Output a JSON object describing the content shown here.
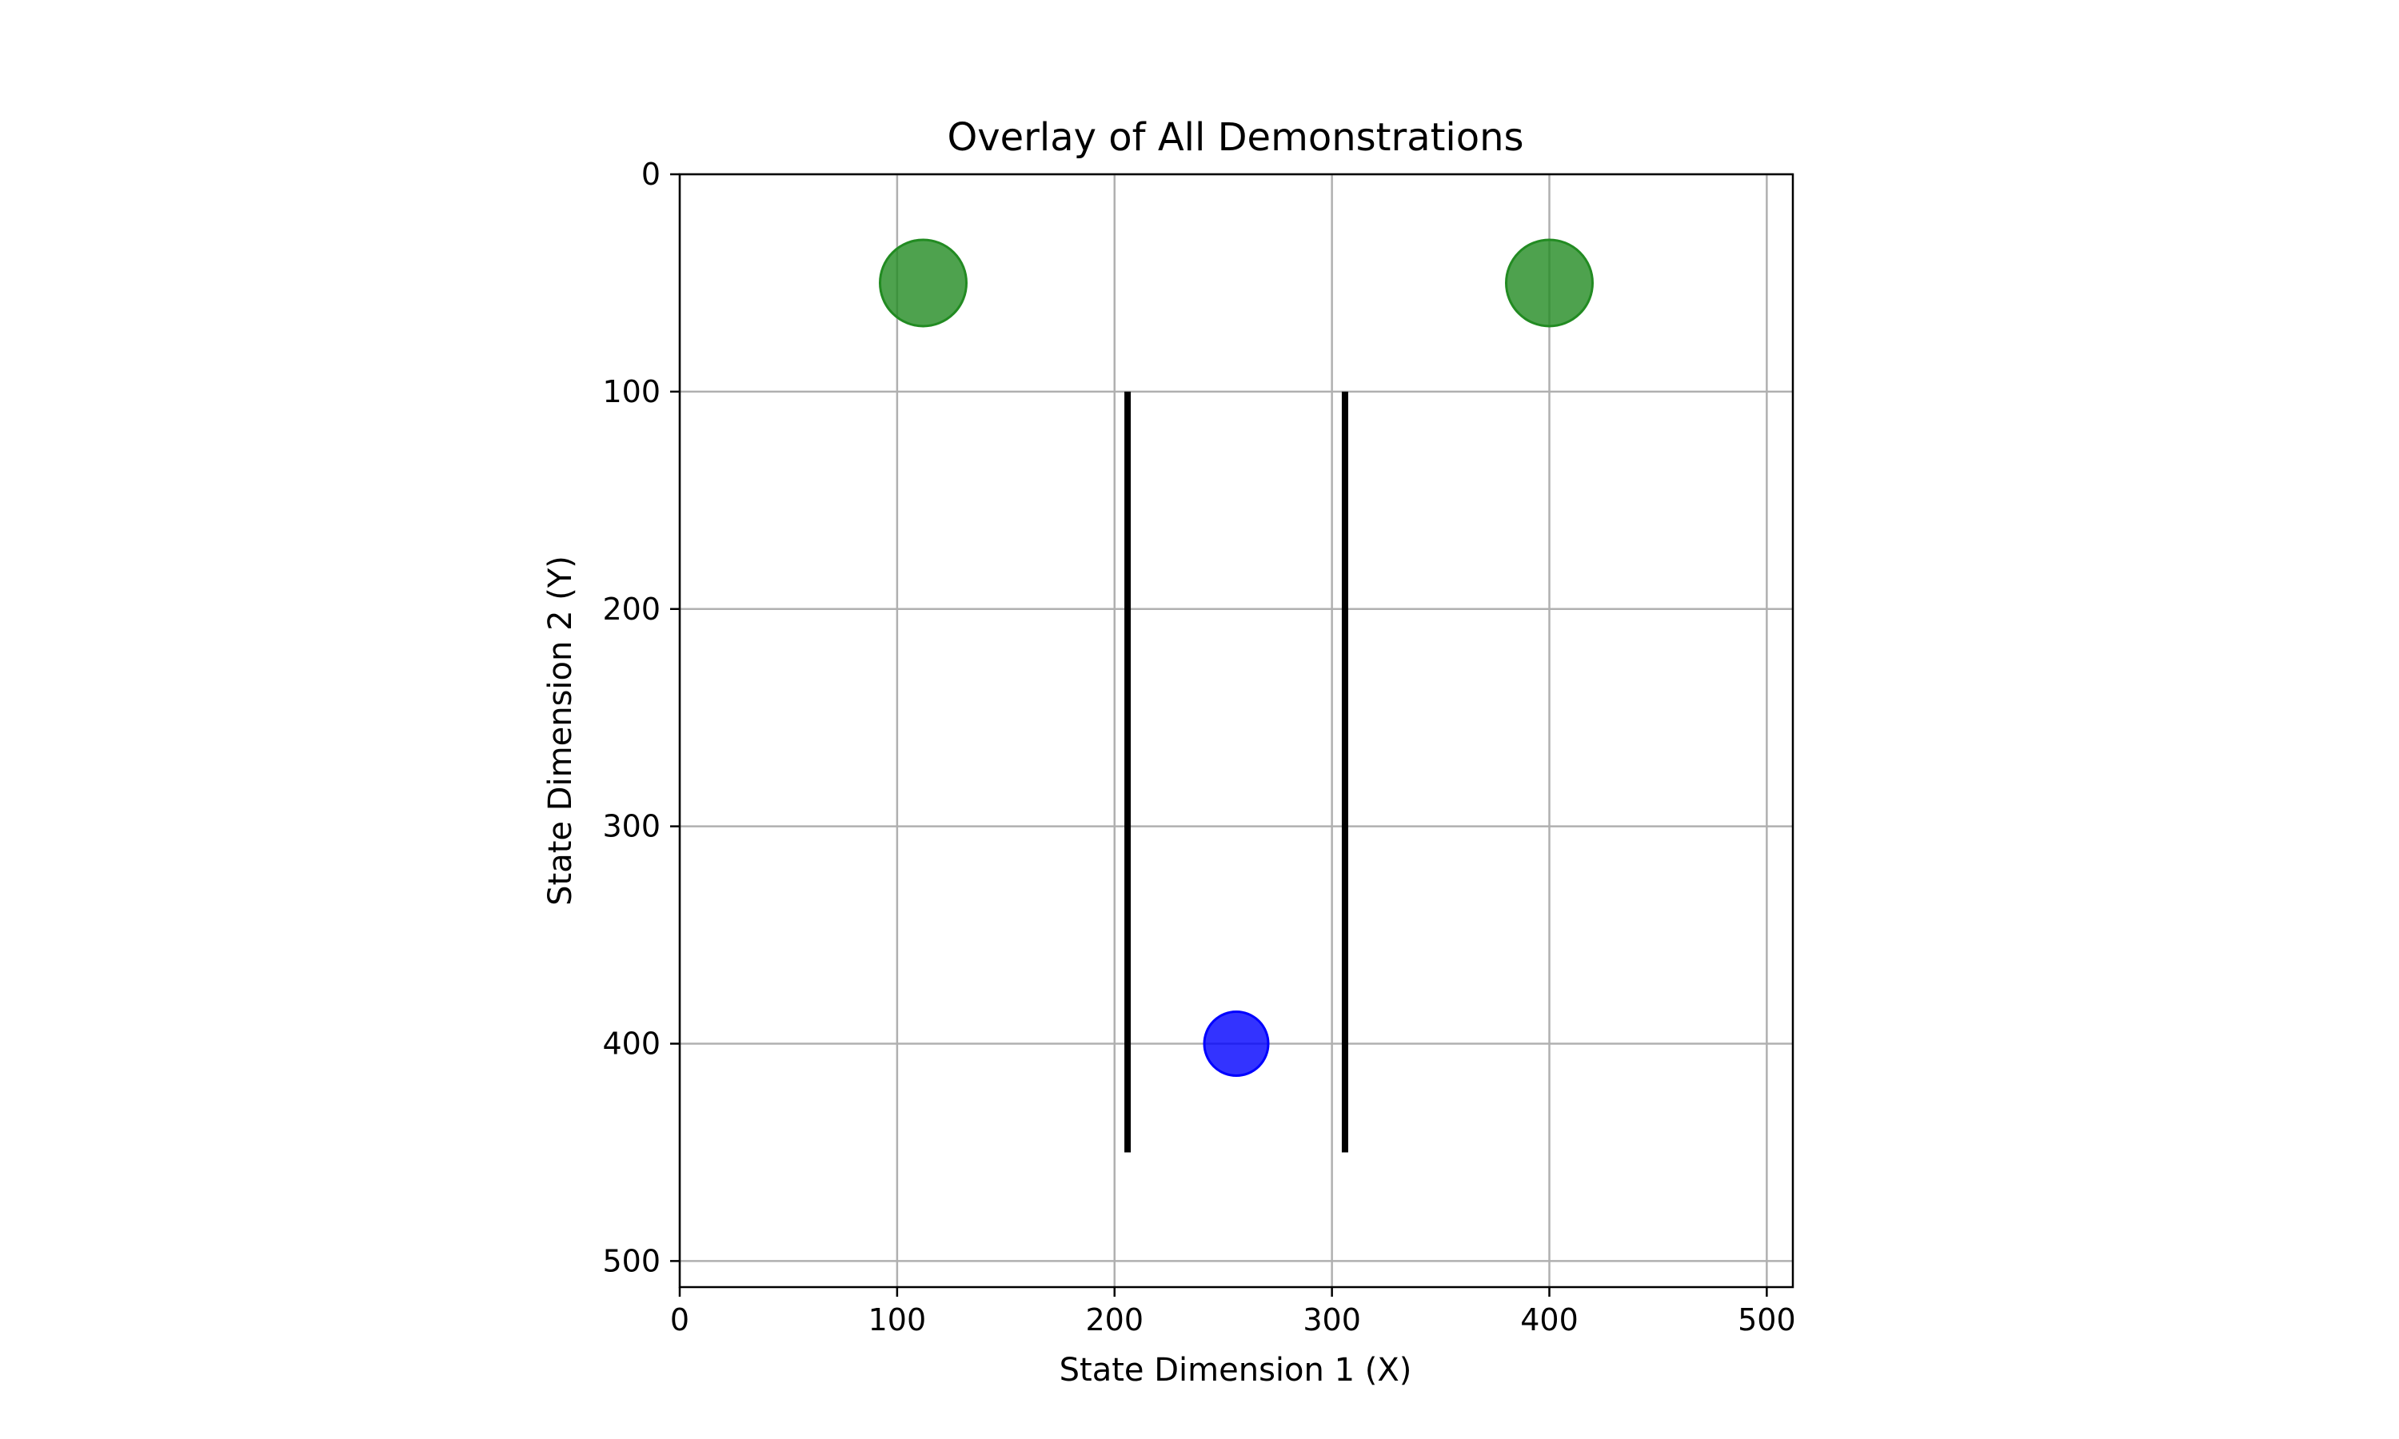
{
  "chart_data": {
    "type": "scatter",
    "title": "Overlay of All Demonstrations",
    "xlabel": "State Dimension 1 (X)",
    "ylabel": "State Dimension 2 (Y)",
    "xlim": [
      0,
      512
    ],
    "ylim": [
      512,
      0
    ],
    "y_axis_inverted": true,
    "grid": true,
    "x_ticks": [
      "0",
      "100",
      "200",
      "300",
      "400",
      "500"
    ],
    "y_ticks": [
      "0",
      "100",
      "200",
      "300",
      "400",
      "500"
    ],
    "points": [
      {
        "x": 112,
        "y": 50,
        "color": "#228B22",
        "marker": "large-circle"
      },
      {
        "x": 400,
        "y": 50,
        "color": "#228B22",
        "marker": "large-circle"
      },
      {
        "x": 256,
        "y": 400,
        "color": "#0000FF",
        "marker": "circle"
      }
    ],
    "line_segments": [
      {
        "x": [
          206,
          206
        ],
        "y": [
          100,
          450
        ],
        "color": "#000000"
      },
      {
        "x": [
          306,
          306
        ],
        "y": [
          100,
          450
        ],
        "color": "#000000"
      }
    ],
    "colors": {
      "goal": "#228B22",
      "agent": "#0000FF",
      "wall": "#000000",
      "grid": "#b0b0b0"
    }
  }
}
